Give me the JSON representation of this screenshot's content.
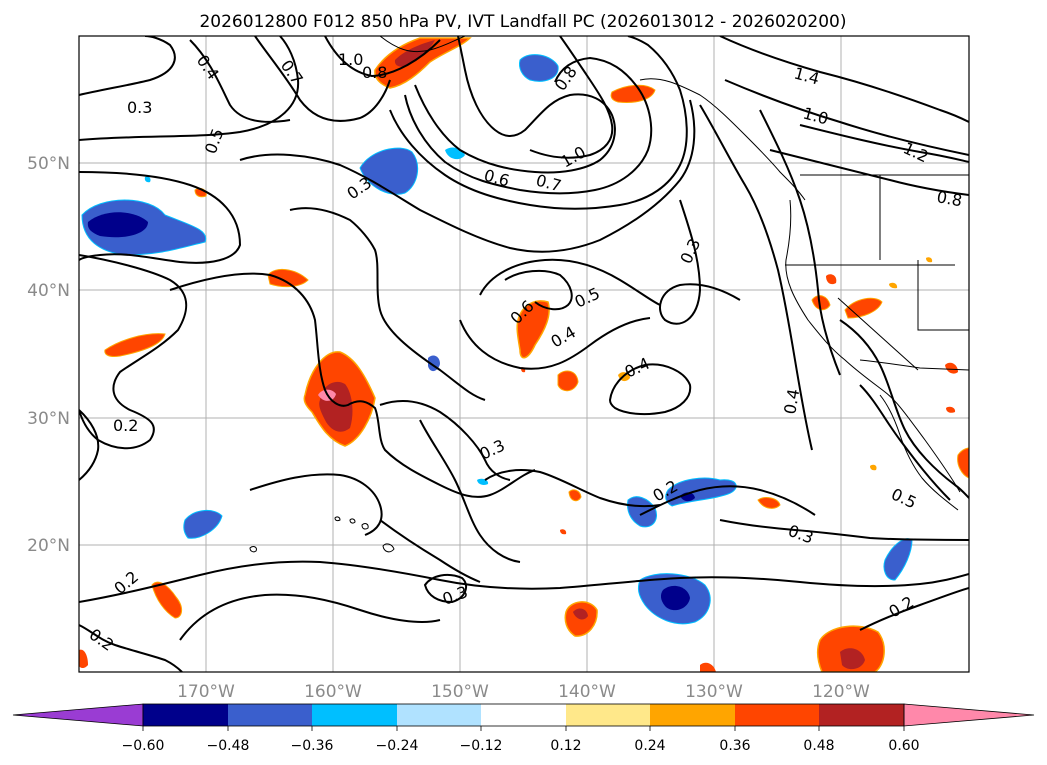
{
  "title": "2026012800 F012 850 hPa PV, IVT Landfall PC (2026013012 - 2026020200)",
  "map": {
    "lon_range": [
      -180,
      -110
    ],
    "lat_range": [
      10,
      60
    ],
    "lat_labels": [
      "50°N",
      "40°N",
      "30°N",
      "20°N"
    ],
    "lon_labels": [
      "170°W",
      "160°W",
      "150°W",
      "140°W",
      "130°W",
      "120°W"
    ],
    "contour_labels": [
      "0.4",
      "0.3",
      "0.7",
      "1.0",
      "0.8",
      "0.5",
      "0.3",
      "0.6",
      "0.7",
      "1.0",
      "0.8",
      "1.4",
      "1.0",
      "1.2",
      "0.8",
      "0.3",
      "0.6",
      "0.5",
      "0.4",
      "0.4",
      "0.4",
      "0.2",
      "0.3",
      "0.2",
      "0.3",
      "0.5",
      "0.2",
      "0.2",
      "0.3",
      "0.2"
    ]
  },
  "colorbar": {
    "ticks": [
      "−0.60",
      "−0.48",
      "−0.36",
      "−0.24",
      "−0.12",
      "0.12",
      "0.24",
      "0.36",
      "0.48",
      "0.60"
    ],
    "colors": [
      "#9a3cd3",
      "#00008b",
      "#3a5fcd",
      "#00bfff",
      "#b0e2ff",
      "#ffffff",
      "#ffe88a",
      "#ffa500",
      "#ff4500",
      "#b22222",
      "#ff88aa"
    ]
  }
}
